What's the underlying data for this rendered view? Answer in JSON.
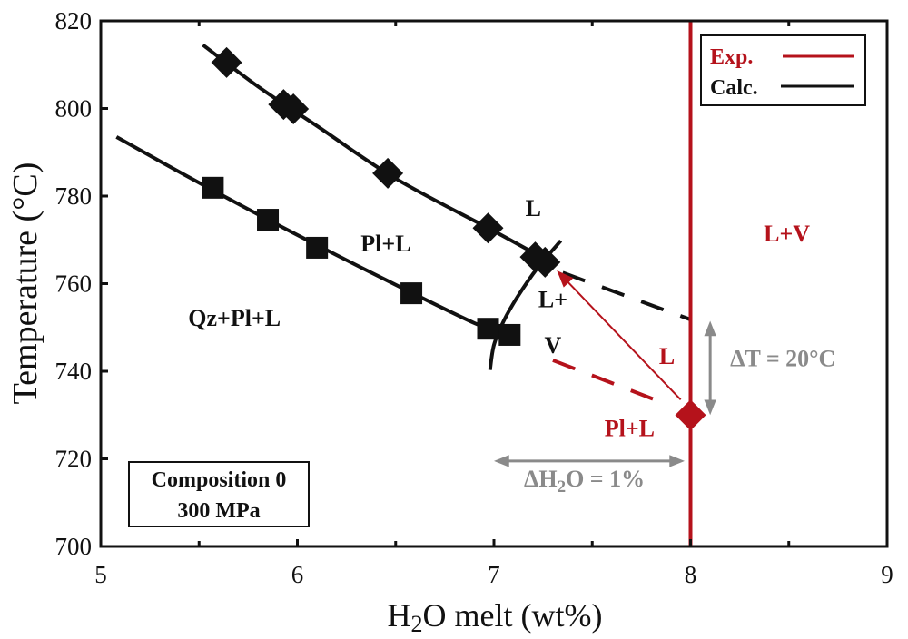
{
  "chart_data": {
    "type": "scatter",
    "title": "",
    "xlabel": "H2O melt (wt%)",
    "xlabel_parts": {
      "pre": "H",
      "sub": "2",
      "post": "O melt (wt%)"
    },
    "ylabel": "Temperature (°C)",
    "xlim": [
      5,
      9
    ],
    "ylim": [
      700,
      820
    ],
    "x_ticks": [
      5,
      6,
      7,
      8,
      9
    ],
    "x_minor_ticks": [
      5.5,
      6.5,
      7.5,
      8.5
    ],
    "y_ticks": [
      700,
      720,
      740,
      760,
      780,
      800,
      820
    ],
    "grid": false,
    "legend": {
      "placement": "top-right",
      "entries": [
        {
          "label": "Exp.",
          "color": "#b5121b",
          "style": "solid"
        },
        {
          "label": "Calc.",
          "color": "#111111",
          "style": "solid"
        }
      ]
    },
    "series": [
      {
        "name": "Calc. liquidus (Pl+L / L)",
        "marker": "diamond",
        "color": "#111111",
        "points": [
          [
            5.64,
            810.5
          ],
          [
            5.93,
            800.9
          ],
          [
            5.98,
            799.9
          ],
          [
            6.46,
            785.2
          ],
          [
            6.97,
            772.7
          ],
          [
            7.21,
            766.1
          ],
          [
            7.26,
            764.9
          ]
        ],
        "line": [
          [
            5.52,
            814.5
          ],
          [
            5.8,
            805
          ],
          [
            6.1,
            796
          ],
          [
            6.5,
            784
          ],
          [
            7.0,
            772
          ],
          [
            7.3,
            764.6
          ]
        ]
      },
      {
        "name": "Calc. Qz-in (Qz+Pl+L / Pl+L)",
        "marker": "square",
        "color": "#111111",
        "points": [
          [
            5.57,
            781.9
          ],
          [
            5.85,
            774.6
          ],
          [
            6.1,
            768.2
          ],
          [
            6.58,
            757.8
          ],
          [
            6.97,
            749.7
          ],
          [
            7.08,
            748.3
          ]
        ],
        "line": [
          [
            5.08,
            793.5
          ],
          [
            5.4,
            785.5
          ],
          [
            5.8,
            775.8
          ],
          [
            6.2,
            766.5
          ],
          [
            6.6,
            757.5
          ],
          [
            6.9,
            751
          ],
          [
            7.0,
            749.5
          ]
        ]
      },
      {
        "name": "Calc. vapour saturation (L / L+V)",
        "marker": "none",
        "color": "#111111",
        "line": [
          [
            6.98,
            740.3
          ],
          [
            7.0,
            746
          ],
          [
            7.05,
            751.5
          ],
          [
            7.12,
            757
          ],
          [
            7.22,
            763.5
          ],
          [
            7.34,
            769.8
          ]
        ]
      },
      {
        "name": "Calc. extrapolated liquidus",
        "marker": "none",
        "style": "dashed",
        "color": "#111111",
        "line": [
          [
            7.35,
            762.5
          ],
          [
            8.0,
            751.8
          ]
        ]
      },
      {
        "name": "Exp. liquidus",
        "marker": "none",
        "style": "dashed",
        "color": "#b5121b",
        "line": [
          [
            7.3,
            742.5
          ],
          [
            7.83,
            733.3
          ]
        ]
      },
      {
        "name": "Exp. water saturation",
        "marker": "none",
        "color": "#b5121b",
        "line": [
          [
            8.0,
            700
          ],
          [
            8.0,
            820
          ]
        ]
      },
      {
        "name": "Exp. point",
        "marker": "diamond",
        "color": "#b5121b",
        "points": [
          [
            8.0,
            730.0
          ]
        ]
      }
    ],
    "arrows": [
      {
        "name": "exp-to-calc-arrow",
        "from": [
          7.95,
          733.5
        ],
        "to": [
          7.32,
          763.0
        ],
        "color": "#b5121b",
        "heads": "end"
      },
      {
        "name": "delta-t-arrow",
        "from": [
          8.1,
          751.5
        ],
        "to": [
          8.1,
          730.0
        ],
        "color": "#8a8a8a",
        "heads": "both"
      },
      {
        "name": "delta-h2o-arrow",
        "from": [
          7.0,
          719.5
        ],
        "to": [
          7.97,
          719.5
        ],
        "color": "#8a8a8a",
        "heads": "both"
      }
    ],
    "annotations": [
      {
        "name": "label-l",
        "text": "L",
        "x": 7.2,
        "y": 777.3,
        "color": "#111111"
      },
      {
        "name": "label-pl-l",
        "text": "Pl+L",
        "x": 6.45,
        "y": 769.2,
        "color": "#111111"
      },
      {
        "name": "label-qz-pl-l",
        "text": "Qz+Pl+L",
        "x": 5.68,
        "y": 752.2,
        "color": "#111111"
      },
      {
        "name": "label-l-plus",
        "text": "L+",
        "x": 7.3,
        "y": 756.5,
        "color": "#111111"
      },
      {
        "name": "label-v",
        "text": "V",
        "x": 7.3,
        "y": 746.0,
        "color": "#111111"
      },
      {
        "name": "label-exp-l",
        "text": "L",
        "x": 7.88,
        "y": 743.5,
        "color": "#b5121b"
      },
      {
        "name": "label-exp-pl-l",
        "text": "Pl+L",
        "x": 7.69,
        "y": 727.0,
        "color": "#b5121b"
      },
      {
        "name": "label-l-v",
        "text": "L+V",
        "x": 8.49,
        "y": 771.5,
        "color": "#b5121b"
      },
      {
        "name": "label-delta-t",
        "text": "ΔT = 20°C",
        "x": 8.47,
        "y": 743.0,
        "color": "#8a8a8a"
      },
      {
        "name": "label-delta-h2o",
        "text": "ΔH2O = 1%",
        "pre": "ΔH",
        "sub": "2",
        "post": "O = 1%",
        "x": 7.46,
        "y": 715.5,
        "color": "#8a8a8a"
      }
    ],
    "info_box": {
      "placement": "bottom-left",
      "lines": [
        "Composition 0",
        "300 MPa"
      ]
    }
  }
}
